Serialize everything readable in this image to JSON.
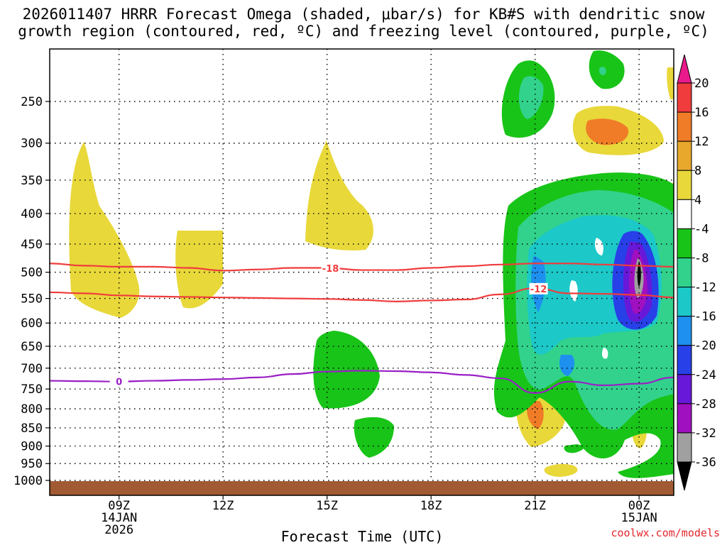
{
  "header": {
    "title_line1": "2026011407 HRRR Forecast Omega (shaded, μbar/s) for KB#S with dendritic snow",
    "title_line2": "growth region (contoured, red, ºC) and freezing level (contoured, purple, ºC)"
  },
  "footer": {
    "credit": "coolwx.com/models"
  },
  "chart_data": {
    "type": "heatmap",
    "title": "2026011407 HRRR Forecast Omega (shaded, μbar/s) for KB#S with dendritic snow growth region (contoured, red, ºC) and freezing level (contoured, purple, ºC)",
    "xlabel": "Forecast Time (UTC)",
    "ylabel": "",
    "x_range_hours": [
      7,
      25
    ],
    "y_range_hpa": [
      200,
      1010
    ],
    "x_ticks": [
      {
        "hour": 9,
        "lines": [
          "09Z",
          "14JAN",
          "2026"
        ]
      },
      {
        "hour": 12,
        "lines": [
          "12Z"
        ]
      },
      {
        "hour": 15,
        "lines": [
          "15Z"
        ]
      },
      {
        "hour": 18,
        "lines": [
          "18Z"
        ]
      },
      {
        "hour": 21,
        "lines": [
          "21Z"
        ]
      },
      {
        "hour": 24,
        "lines": [
          "00Z",
          "15JAN"
        ]
      }
    ],
    "y_ticks": [
      250,
      300,
      350,
      400,
      450,
      500,
      550,
      600,
      650,
      700,
      750,
      800,
      850,
      900,
      950,
      1000
    ],
    "colorbar": {
      "labels": [
        "20",
        "16",
        "12",
        "8",
        "4",
        "-4",
        "-8",
        "-12",
        "-16",
        "-20",
        "-24",
        "-28",
        "-32",
        "-36"
      ],
      "colors": [
        "#e81a8c",
        "#f03c3c",
        "#f07c28",
        "#e8a82c",
        "#e8d83a",
        "#ffffff",
        "#18c418",
        "#32d28c",
        "#1cc8c8",
        "#1e90f0",
        "#2840e8",
        "#6818d8",
        "#a010c0",
        "#a0a0a0",
        "#000000"
      ]
    },
    "contours": [
      {
        "name": "-18",
        "color": "#f03c3c",
        "label_at_hour": 15.1,
        "points": [
          [
            7,
            484
          ],
          [
            8,
            488
          ],
          [
            9,
            490
          ],
          [
            10,
            490
          ],
          [
            11,
            492
          ],
          [
            12,
            497
          ],
          [
            13,
            495
          ],
          [
            14,
            492
          ],
          [
            15,
            492
          ],
          [
            16,
            496
          ],
          [
            17,
            496
          ],
          [
            18,
            492
          ],
          [
            19,
            489
          ],
          [
            20,
            486
          ],
          [
            21,
            484
          ],
          [
            22,
            484
          ],
          [
            23,
            486
          ],
          [
            24,
            488
          ],
          [
            25,
            490
          ]
        ]
      },
      {
        "name": "-12",
        "color": "#f03c3c",
        "label_at_hour": 21.1,
        "points": [
          [
            7,
            538
          ],
          [
            8,
            540
          ],
          [
            9,
            544
          ],
          [
            10,
            546
          ],
          [
            11,
            547
          ],
          [
            12,
            548
          ],
          [
            13,
            549
          ],
          [
            14,
            550
          ],
          [
            15,
            551
          ],
          [
            16,
            553
          ],
          [
            17,
            556
          ],
          [
            18,
            554
          ],
          [
            19,
            552
          ],
          [
            20,
            542
          ],
          [
            21,
            530
          ],
          [
            22,
            540
          ],
          [
            23,
            541
          ],
          [
            24,
            543
          ],
          [
            25,
            548
          ]
        ]
      },
      {
        "name": "0",
        "color": "#9a1fc6",
        "label_at_hour": 9.0,
        "points": [
          [
            7,
            730
          ],
          [
            8,
            731
          ],
          [
            9,
            732
          ],
          [
            10,
            730
          ],
          [
            11,
            728
          ],
          [
            12,
            726
          ],
          [
            13,
            722
          ],
          [
            14,
            714
          ],
          [
            15,
            708
          ],
          [
            16,
            706
          ],
          [
            17,
            707
          ],
          [
            18,
            710
          ],
          [
            19,
            716
          ],
          [
            20,
            724
          ],
          [
            21,
            760
          ],
          [
            22,
            732
          ],
          [
            23,
            741
          ],
          [
            24,
            737
          ],
          [
            25,
            722
          ]
        ]
      }
    ],
    "terrain_top_hpa": 1008
  }
}
